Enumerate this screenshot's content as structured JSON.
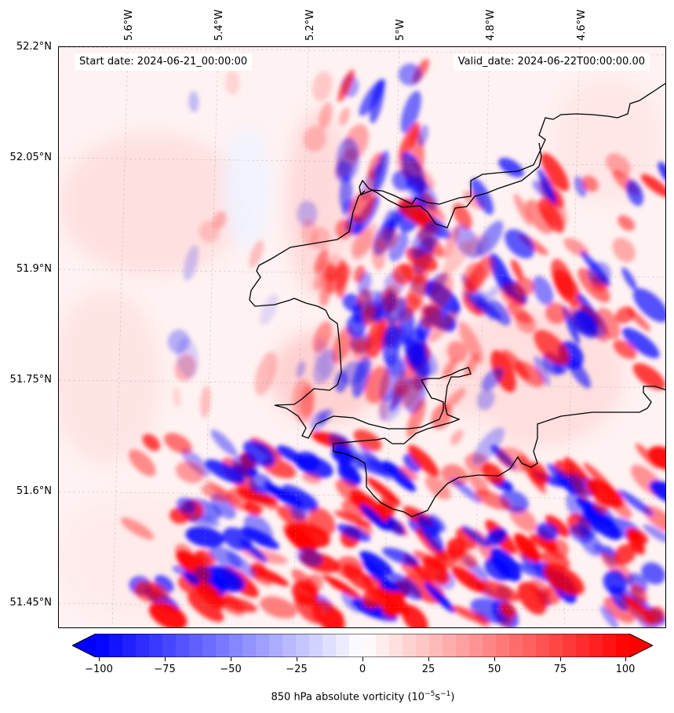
{
  "map": {
    "start_date": "Start date: 2024-06-21_00:00:00",
    "valid_date": "Valid_date: 2024-06-22T00:00:00.00",
    "lon_labels": [
      "5.6°W",
      "5.4°W",
      "5.2°W",
      "5°W",
      "4.8°W",
      "4.6°W"
    ],
    "lat_labels": [
      "52.2°N",
      "52.05°N",
      "51.9°N",
      "51.75°N",
      "51.6°N",
      "51.45°N"
    ],
    "field": "850 hPa absolute vorticity",
    "colormap": "bwr",
    "colors": {
      "negative": "#0000ff",
      "zero": "#ffffff",
      "positive": "#ff0000",
      "coastline": "#000000"
    }
  },
  "colorbar": {
    "ticks": [
      "−100",
      "−75",
      "−50",
      "−25",
      "0",
      "25",
      "50",
      "75",
      "100"
    ],
    "tick_values": [
      -100,
      -75,
      -50,
      -25,
      0,
      25,
      50,
      75,
      100
    ],
    "range": [
      -100,
      100
    ],
    "extend": "both",
    "label_main": "850 hPa absolute vorticity (10",
    "label_exp1": "−5",
    "label_mid": "s",
    "label_exp2": "−1",
    "label_end": ")"
  }
}
